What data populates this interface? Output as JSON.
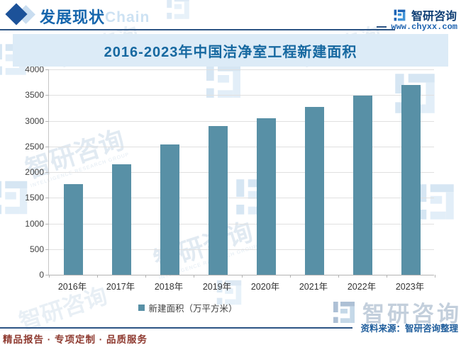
{
  "header": {
    "section_title": "发展现状",
    "background_word": "Chain",
    "brand": "智研咨询",
    "website": "www.chyxx.com"
  },
  "chart_data": {
    "type": "bar",
    "title": "2016-2023年中国洁净室工程新建面积",
    "categories": [
      "2016年",
      "2017年",
      "2018年",
      "2019年",
      "2020年",
      "2021年",
      "2022年",
      "2023年"
    ],
    "values": [
      1770,
      2150,
      2540,
      2900,
      3050,
      3270,
      3490,
      3700
    ],
    "legend": "新建面积（万平方米）",
    "ylim": [
      0,
      4000
    ],
    "ytick_step": 500,
    "bar_color": "#5890a6",
    "grid": true,
    "legend_position": "bottom"
  },
  "footer": {
    "source": "资料来源：智研咨询整理",
    "watermark_brand": "智研咨询",
    "slogan": "精品报告 · 专项定制 · 品质服务"
  },
  "watermark": {
    "brand": "智研咨询",
    "sub": "INTELLIGENCE RESEARCH GROUP"
  },
  "colors": {
    "accent_blue": "#1666ad",
    "navy": "#0f3e74",
    "band_bg": "#dcebf7",
    "bar": "#5890a6",
    "slogan_red": "#8f3b31"
  }
}
